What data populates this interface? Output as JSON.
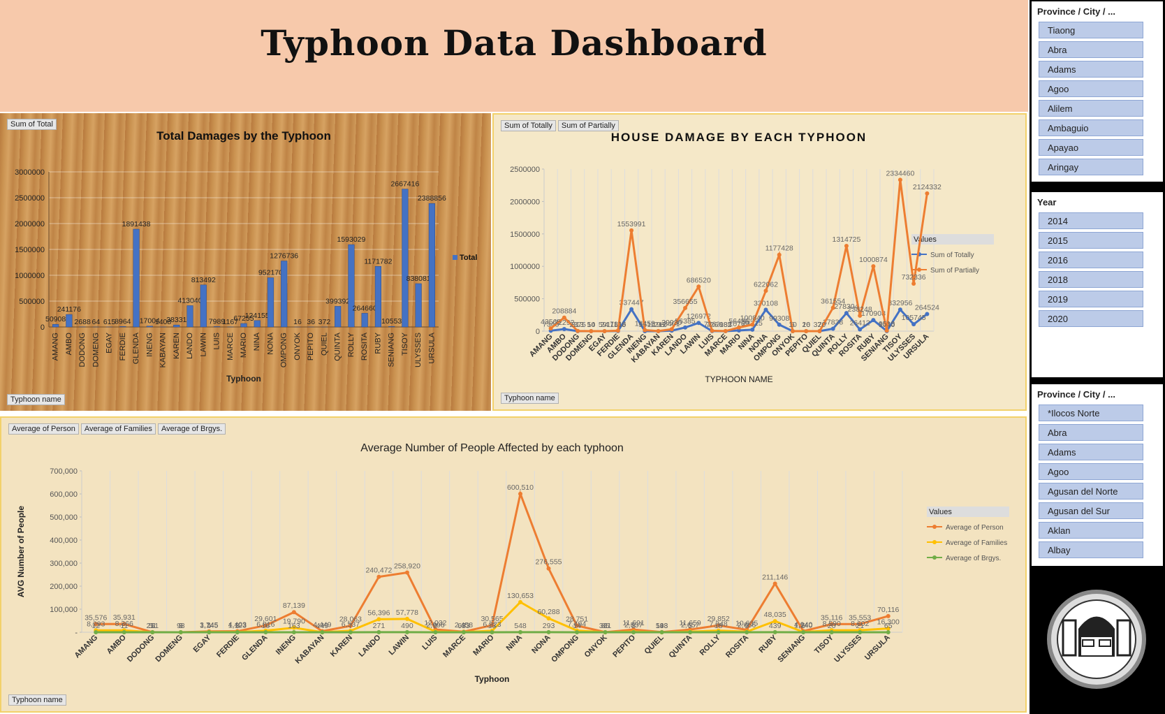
{
  "header": {
    "title": "Typhoon Data Dashboard"
  },
  "chart_data": [
    {
      "type": "bar",
      "title": "Total Damages by the Typhoon",
      "xlabel": "Typhoon",
      "field_buttons": [
        "Sum of Total"
      ],
      "axis_button": "Typhoon name",
      "categories": [
        "AMANG",
        "AMBO",
        "DODONG",
        "DOMENG",
        "EGAY",
        "FERDIE",
        "GLENDA",
        "INENG",
        "KABAYAN",
        "KAREN",
        "LANDO",
        "LAWIN",
        "LUIS",
        "MARCE",
        "MARIO",
        "NINA",
        "NONA",
        "OMPONG",
        "ONYOK",
        "PEPITO",
        "QUIEL",
        "QUINTA",
        "ROLLY",
        "ROSITA",
        "RUBY",
        "SENIANG",
        "TISOY",
        "ULYSSES",
        "URSULA"
      ],
      "series": [
        {
          "name": "Total",
          "color": "#4472c4",
          "values": [
            50908,
            241176,
            2688,
            64,
            615,
            8964,
            1891438,
            17004,
            1408,
            38331,
            413040,
            813492,
            7989,
            1167,
            67255,
            124155,
            952170,
            1276736,
            16,
            36,
            372,
            399392,
            1593029,
            264660,
            1171782,
            10553,
            2667416,
            838081,
            2388856
          ]
        }
      ],
      "ylim": [
        0,
        3000000
      ],
      "yticks": [
        0,
        500000,
        1000000,
        1500000,
        2000000,
        2500000,
        3000000
      ],
      "grid": "y"
    },
    {
      "type": "line",
      "title": "HOUSE DAMAGE BY EACH TYPHOON",
      "xlabel": "TYPHOON NAME",
      "legend_title": "Values",
      "field_buttons": [
        "Sum of Totally",
        "Sum of Partially"
      ],
      "axis_button": "Typhoon name",
      "categories": [
        "AMANG",
        "AMBO",
        "DODONG",
        "DOMENG",
        "EGAY",
        "FERDIE",
        "GLENDA",
        "INENG",
        "KABAYAN",
        "KAREN",
        "LANDO",
        "LAWIN",
        "LUIS",
        "MARCE",
        "MARIO",
        "NINA",
        "NONA",
        "OMPONG",
        "ONYOK",
        "PEPITO",
        "QUIEL",
        "QUINTA",
        "ROLLY",
        "ROSITA",
        "RUBY",
        "SENIANG",
        "TISOY",
        "ULYSSES",
        "URSULA"
      ],
      "series": [
        {
          "name": "Sum of Totally",
          "color": "#4472c4",
          "values": [
            7343,
            32292,
            313,
            10,
            24,
            1148,
            337447,
            551,
            196,
            8401,
            56385,
            126972,
            726,
            182,
            10769,
            23315,
            330108,
            99308,
            6,
            16,
            2,
            37838,
            278304,
            26412,
            170908,
            1040,
            332956,
            105745,
            264524
          ]
        },
        {
          "name": "Sum of Partially",
          "color": "#ed7d31",
          "values": [
            43565,
            208884,
            2375,
            54,
            591,
            7816,
            1553991,
            16453,
            1212,
            29930,
            356655,
            686520,
            7263,
            985,
            56486,
            100840,
            622062,
            1177428,
            10,
            20,
            370,
            361554,
            1314725,
            238248,
            1000874,
            9513,
            2334460,
            732336,
            2124332
          ]
        }
      ],
      "ylim": [
        0,
        2500000
      ],
      "yticks": [
        0,
        500000,
        1000000,
        1500000,
        2000000,
        2500000
      ],
      "grid": "x"
    },
    {
      "type": "line",
      "title": "Average Number of People Affected by each typhoon",
      "xlabel": "Typhoon",
      "ylabel": "AVG Number of People",
      "legend_title": "Values",
      "field_buttons": [
        "Average of Person",
        "Average of Families",
        "Average of Brgys."
      ],
      "axis_button": "Typhoon name",
      "categories": [
        "AMANG",
        "AMBO",
        "DODONG",
        "DOMENG",
        "EGAY",
        "FERDIE",
        "GLENDA",
        "INENG",
        "KABAYAN",
        "KAREN",
        "LANDO",
        "LAWIN",
        "LUIS",
        "MARCE",
        "MARIO",
        "NINA",
        "NONA",
        "OMPONG",
        "ONYOK",
        "PEPITO",
        "QUIEL",
        "QUINTA",
        "ROLLY",
        "ROSITA",
        "RUBY",
        "SENIANG",
        "TISOY",
        "ULYSSES",
        "URSULA"
      ],
      "series": [
        {
          "name": "Average of Person",
          "color": "#ed7d31",
          "values": [
            35576,
            35931,
            251,
            93,
            3745,
            4403,
            29601,
            87139,
            4449,
            28063,
            240472,
            258920,
            12032,
            2458,
            30565,
            600510,
            276555,
            28751,
            361,
            11691,
            593,
            11659,
            29852,
            10635,
            211146,
            4940,
            35116,
            35553,
            70116
          ],
          "value_labels": [
            "35,576",
            "35,931",
            "251",
            "93",
            "3,745",
            "4,403",
            "29,601",
            "87,139",
            "4,449",
            "28,063",
            "240,472",
            "258,920",
            "12,032",
            "2,458",
            "30,565",
            "600,510",
            "276,555",
            "28,751",
            "361",
            "11,691",
            "593",
            "11,659",
            "29,852",
            "10,635",
            "211,146",
            "4,940",
            "35,116",
            "35,553",
            "70,116"
          ]
        },
        {
          "name": "Average of Families",
          "color": "#ffc000",
          "values": [
            8293,
            8366,
            51,
            9,
            1145,
            1123,
            6816,
            19790,
            449,
            6537,
            56396,
            57778,
            2996,
            653,
            6323,
            130653,
            60288,
            7494,
            85,
            2537,
            148,
            2657,
            7348,
            2656,
            48035,
            1240,
            8590,
            8602,
            16300
          ],
          "value_labels": [
            "8,293",
            "8,366",
            "51",
            "9",
            "1,145",
            "1,123",
            "6,816",
            "19,790",
            "449",
            "6,537",
            "56,396",
            "57,778",
            "2,996",
            "653",
            "6,323",
            "130,653",
            "60,288",
            "7,494",
            "85",
            "2,537",
            "148",
            "2,657",
            "7,348",
            "2,656",
            "48,035",
            "1,240",
            "8,590",
            "8,602",
            "16,300"
          ]
        },
        {
          "name": "Average of Brgys.",
          "color": "#70ad47",
          "values": [
            12,
            11,
            1,
            3,
            4,
            3,
            16,
            163,
            4,
            7,
            271,
            490,
            9,
            3,
            13,
            548,
            293,
            14,
            2,
            8,
            3,
            5,
            18,
            9,
            439,
            6,
            20,
            21,
            65
          ]
        }
      ],
      "ylim": [
        0,
        700000
      ],
      "yticks": [
        {
          "value": 0,
          "label": "-"
        },
        {
          "value": 100000,
          "label": "100,000"
        },
        {
          "value": 200000,
          "label": "200,000"
        },
        {
          "value": 300000,
          "label": "300,000"
        },
        {
          "value": 400000,
          "label": "400,000"
        },
        {
          "value": 500000,
          "label": "500,000"
        },
        {
          "value": 600000,
          "label": "600,000"
        },
        {
          "value": 700000,
          "label": "700,000"
        }
      ],
      "grid": "x"
    }
  ],
  "slicers": [
    {
      "title": "Province / City / ...",
      "items": [
        "Tiaong",
        "Abra",
        "Adams",
        "Agoo",
        "Alilem",
        "Ambaguio",
        "Apayao",
        "Aringay"
      ]
    },
    {
      "title": "Year",
      "items": [
        "2014",
        "2015",
        "2016",
        "2018",
        "2019",
        "2020"
      ]
    },
    {
      "title": "Province / City / ...",
      "items": [
        "*Ilocos Norte",
        "Abra",
        "Adams",
        "Agoo",
        "Agusan del Norte",
        "Agusan del Sur",
        "Aklan",
        "Albay"
      ]
    }
  ]
}
